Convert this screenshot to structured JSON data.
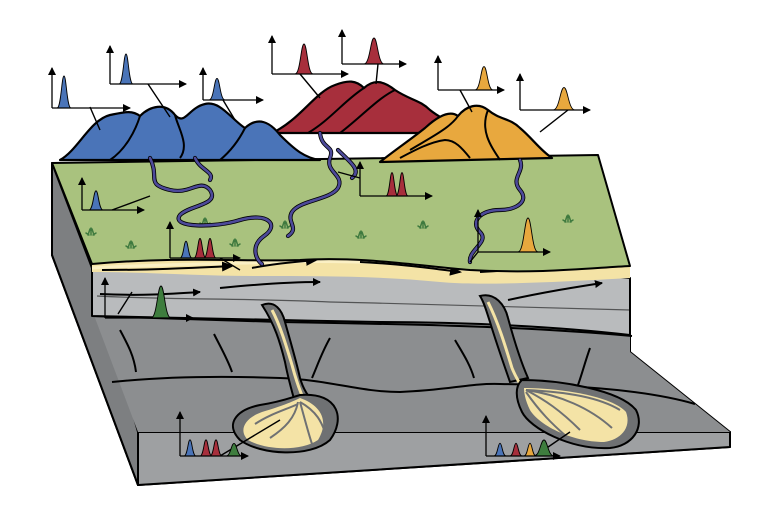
{
  "palette": {
    "blue": "#4a74b8",
    "red": "#a72f3c",
    "orange": "#e8a83e",
    "green_sample": "#3e7d3e",
    "grass": "#a9c27e",
    "sand": "#f4e3a6",
    "sand_light": "#fbf0c4",
    "river": "#4d4a9a",
    "sediment": "#b9bbbd",
    "rock": "#8d8f91",
    "rock_dark": "#6f7173",
    "bedrock_front": "#9ea0a2",
    "outline": "#000000",
    "plant": "#3f7a3f",
    "arrow": "#000000"
  },
  "sources": [
    {
      "name": "blue-mountains",
      "color": "blue"
    },
    {
      "name": "red-mountains",
      "color": "red"
    },
    {
      "name": "orange-mountains",
      "color": "orange"
    }
  ],
  "distribution_plots": [
    {
      "name": "plot-blue-1",
      "peaks": [
        "blue"
      ]
    },
    {
      "name": "plot-blue-2",
      "peaks": [
        "blue"
      ]
    },
    {
      "name": "plot-blue-3",
      "peaks": [
        "blue"
      ]
    },
    {
      "name": "plot-red-1",
      "peaks": [
        "red"
      ]
    },
    {
      "name": "plot-red-2",
      "peaks": [
        "red"
      ]
    },
    {
      "name": "plot-orange-1",
      "peaks": [
        "orange"
      ]
    },
    {
      "name": "plot-orange-2",
      "peaks": [
        "orange"
      ]
    },
    {
      "name": "plot-plain-blue",
      "peaks": [
        "blue"
      ]
    },
    {
      "name": "plot-plain-red",
      "peaks": [
        "red",
        "red"
      ]
    },
    {
      "name": "plot-plain-mixed",
      "peaks": [
        "blue",
        "red",
        "red"
      ]
    },
    {
      "name": "plot-plain-orange",
      "peaks": [
        "orange"
      ]
    },
    {
      "name": "plot-subsurface-green",
      "peaks": [
        "green_sample"
      ]
    },
    {
      "name": "plot-fan-left",
      "peaks": [
        "blue",
        "red",
        "red",
        "green_sample"
      ]
    },
    {
      "name": "plot-fan-right",
      "peaks": [
        "blue",
        "red",
        "orange",
        "green_sample"
      ]
    }
  ]
}
